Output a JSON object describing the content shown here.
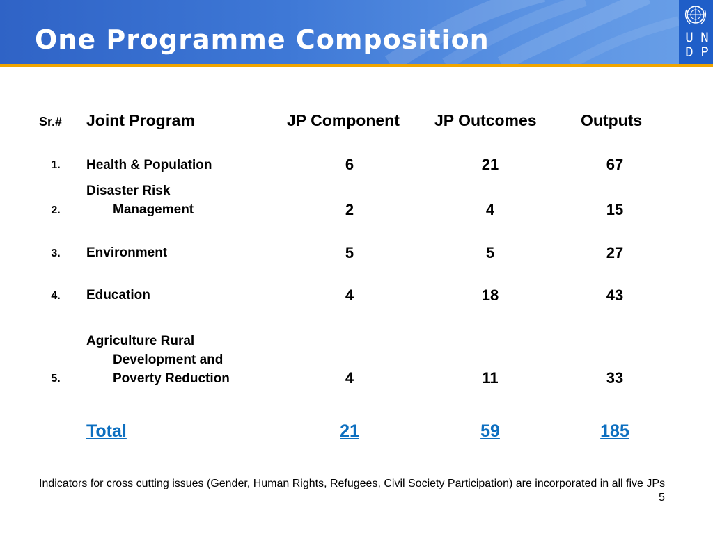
{
  "slide": {
    "title": "One Programme Composition",
    "page_number": "5"
  },
  "logo": {
    "letters": [
      "U",
      "N",
      "D",
      "P"
    ]
  },
  "table": {
    "headers": {
      "sr": "Sr.#",
      "program": "Joint Program",
      "component": "JP Component",
      "outcomes": "JP Outcomes",
      "outputs": "Outputs"
    },
    "rows": [
      {
        "sr": "1.",
        "program_lines": [
          "Health & Population"
        ],
        "component": "6",
        "outcomes": "21",
        "outputs": "67"
      },
      {
        "sr": "2.",
        "program_lines": [
          "Disaster Risk",
          "Management"
        ],
        "component": "2",
        "outcomes": "4",
        "outputs": "15"
      },
      {
        "sr": "3.",
        "program_lines": [
          "Environment"
        ],
        "component": "5",
        "outcomes": "5",
        "outputs": "27"
      },
      {
        "sr": "4.",
        "program_lines": [
          "Education"
        ],
        "component": "4",
        "outcomes": "18",
        "outputs": "43"
      },
      {
        "sr": "5.",
        "program_lines": [
          "Agriculture Rural",
          "Development and",
          "Poverty Reduction"
        ],
        "component": "4",
        "outcomes": "11",
        "outputs": "33"
      }
    ],
    "total": {
      "label": "Total",
      "component": "21",
      "outcomes": "59",
      "outputs": "185"
    }
  },
  "footnote": "Indicators for cross cutting issues (Gender, Human Rights, Refugees, Civil Society Participation)  are incorporated in all five JPs"
}
